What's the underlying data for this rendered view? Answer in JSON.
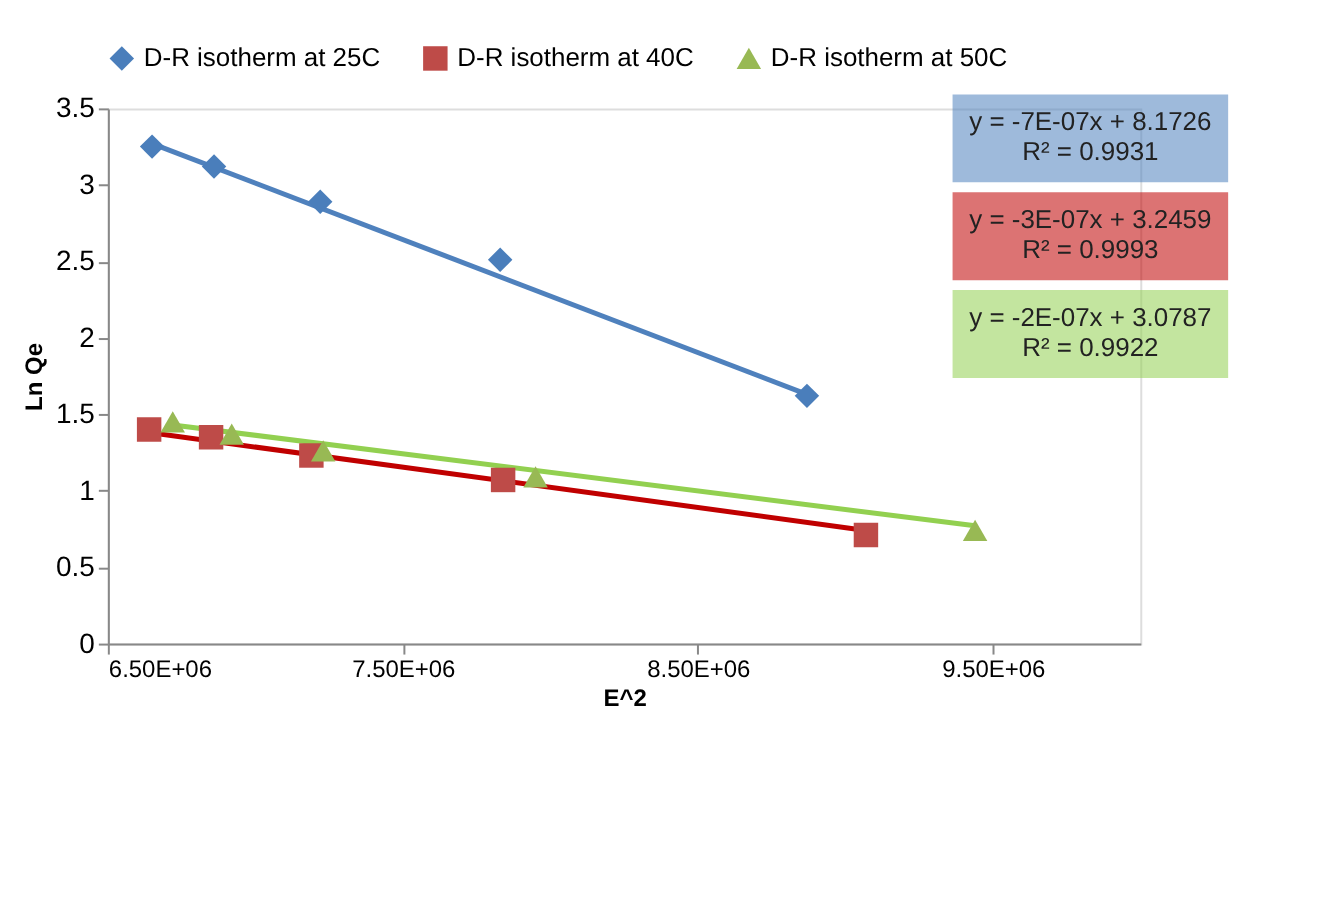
{
  "chart_data": {
    "type": "scatter",
    "xlabel": "E^2",
    "ylabel": "Ln Qe",
    "xlim": [
      6500000,
      10000000
    ],
    "xticks": [
      {
        "value": 6500000,
        "label": "6.50E+06"
      },
      {
        "value": 7500000,
        "label": "7.50E+06"
      },
      {
        "value": 8500000,
        "label": "8.50E+06"
      },
      {
        "value": 9500000,
        "label": "9.50E+06"
      }
    ],
    "ylim": [
      0,
      3.5
    ],
    "yticks": [
      0,
      0.5,
      1,
      1.5,
      2,
      2.5,
      3,
      3.5
    ],
    "grid": false,
    "legend": "top",
    "series": [
      {
        "name": "D-R isotherm at 25C",
        "color": "#4a7ebb",
        "marker": "diamond",
        "x": [
          6650000,
          6860000,
          7220000,
          7830000,
          8870000
        ],
        "values": [
          3.25,
          3.12,
          2.89,
          2.51,
          1.62
        ]
      },
      {
        "name": "D-R isotherm at 40C",
        "color": "#be4b48",
        "marker": "square",
        "x": [
          6640000,
          6850000,
          7190000,
          7840000,
          9070000
        ],
        "values": [
          1.4,
          1.35,
          1.23,
          1.07,
          0.71
        ]
      },
      {
        "name": "D-R isotherm at 50C",
        "color": "#98b954",
        "marker": "triangle",
        "x": [
          6720000,
          6920000,
          7230000,
          7950000,
          9440000
        ],
        "values": [
          1.45,
          1.37,
          1.26,
          1.09,
          0.74
        ]
      },
      {
        "type": "line",
        "color": "#4f81bd",
        "x": [
          6650000,
          8870000
        ],
        "values": [
          3.27,
          1.63
        ]
      },
      {
        "type": "line",
        "color": "#c00000",
        "x": [
          6640000,
          9070000
        ],
        "values": [
          1.38,
          0.74
        ]
      },
      {
        "type": "line",
        "color": "#92d050",
        "x": [
          6720000,
          9440000
        ],
        "values": [
          1.43,
          0.77
        ]
      }
    ],
    "annotations": [
      "y = -7E-07x + 8.1726\nR² = 0.9931",
      "y = -3E-07x + 3.2459\nR² = 0.9993",
      "y = -2E-07x + 3.0787\nR² = 0.9922"
    ]
  }
}
